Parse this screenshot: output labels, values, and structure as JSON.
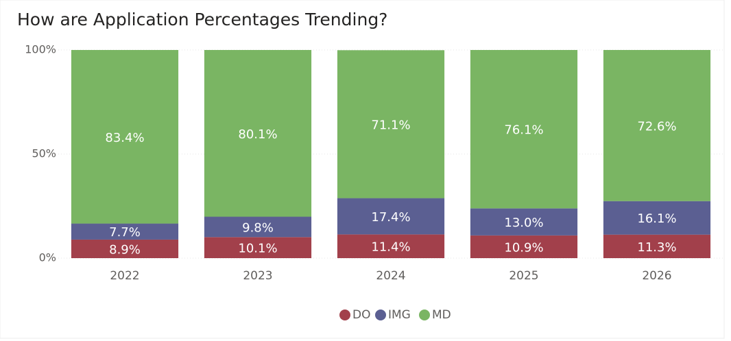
{
  "chart_data": {
    "type": "stacked_bar",
    "title": "How are Application Percentages Trending?",
    "categories": [
      "2022",
      "2023",
      "2024",
      "2025",
      "2026"
    ],
    "series": [
      {
        "name": "DO",
        "color": "#a2404b",
        "values": [
          8.9,
          10.1,
          11.4,
          10.9,
          11.3
        ],
        "value_labels": [
          "8.9%",
          "10.1%",
          "11.4%",
          "10.9%",
          "11.3%"
        ]
      },
      {
        "name": "IMG",
        "color": "#5b5f92",
        "values": [
          7.7,
          9.8,
          17.4,
          13.0,
          16.1
        ],
        "value_labels": [
          "7.7%",
          "9.8%",
          "17.4%",
          "13.0%",
          "16.1%"
        ]
      },
      {
        "name": "MD",
        "color": "#7ab563",
        "values": [
          83.4,
          80.1,
          71.1,
          76.1,
          72.6
        ],
        "value_labels": [
          "83.4%",
          "80.1%",
          "71.1%",
          "76.1%",
          "72.6%"
        ]
      }
    ],
    "ylim": [
      0,
      100
    ],
    "yticks": [
      {
        "value": 0,
        "label": "0%"
      },
      {
        "value": 50,
        "label": "50%"
      },
      {
        "value": 100,
        "label": "100%"
      }
    ],
    "grid": true,
    "legend": "bottom"
  }
}
